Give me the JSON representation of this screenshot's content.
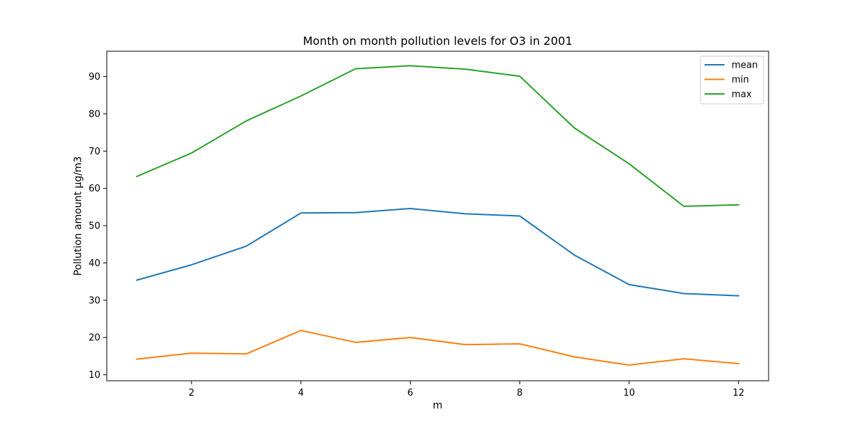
{
  "chart_data": {
    "type": "line",
    "title": "Month on month pollution levels for O3 in 2001",
    "xlabel": "m",
    "ylabel": "Pollution amount µg/m3",
    "x": [
      1,
      2,
      3,
      4,
      5,
      6,
      7,
      8,
      9,
      10,
      11,
      12
    ],
    "xlim": [
      0.45,
      12.55
    ],
    "ylim": [
      8.4,
      96.8
    ],
    "xticks": [
      2,
      4,
      6,
      8,
      10,
      12
    ],
    "yticks": [
      10,
      20,
      30,
      40,
      50,
      60,
      70,
      80,
      90
    ],
    "xtick_labels": [
      "2",
      "4",
      "6",
      "8",
      "10",
      "12"
    ],
    "ytick_labels": [
      "10",
      "20",
      "30",
      "40",
      "50",
      "60",
      "70",
      "80",
      "90"
    ],
    "grid": false,
    "legend_position": "top-right",
    "series": [
      {
        "name": "mean",
        "color": "#1f77b4",
        "values": [
          35.4,
          39.5,
          44.5,
          53.4,
          53.5,
          54.6,
          53.2,
          52.6,
          42.1,
          34.2,
          31.8,
          31.2
        ]
      },
      {
        "name": "min",
        "color": "#ff7f0e",
        "values": [
          14.2,
          15.8,
          15.6,
          21.9,
          18.7,
          20.0,
          18.1,
          18.3,
          14.8,
          12.6,
          14.3,
          13.0
        ]
      },
      {
        "name": "max",
        "color": "#2ca02c",
        "values": [
          63.2,
          69.5,
          78.1,
          84.8,
          92.1,
          92.9,
          92.0,
          90.1,
          76.2,
          66.6,
          55.2,
          55.6
        ]
      }
    ]
  }
}
